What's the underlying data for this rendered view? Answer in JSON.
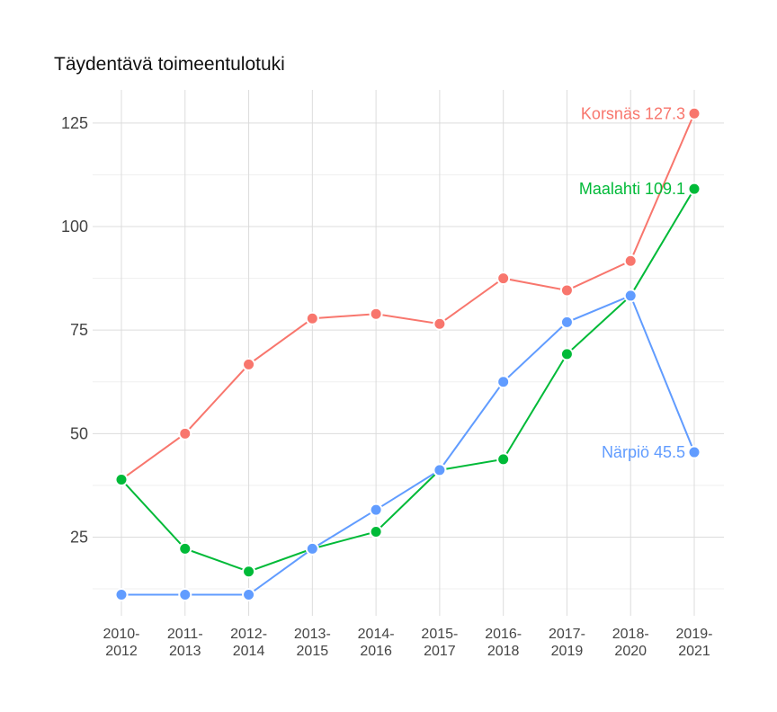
{
  "chart_data": {
    "type": "line",
    "title": "Täydentävä toimeentulotuki",
    "categories": [
      [
        "2010-",
        "2012"
      ],
      [
        "2011-",
        "2013"
      ],
      [
        "2012-",
        "2014"
      ],
      [
        "2013-",
        "2015"
      ],
      [
        "2014-",
        "2016"
      ],
      [
        "2015-",
        "2017"
      ],
      [
        "2016-",
        "2018"
      ],
      [
        "2017-",
        "2019"
      ],
      [
        "2018-",
        "2020"
      ],
      [
        "2019-",
        "2021"
      ]
    ],
    "yticks": [
      25,
      50,
      75,
      100,
      125
    ],
    "ylim": [
      6,
      133
    ],
    "grid": true,
    "series": [
      {
        "name": "Korsnäs",
        "color": "#F8766D",
        "values": [
          38.9,
          50.0,
          66.7,
          77.8,
          78.9,
          76.5,
          87.5,
          84.6,
          91.7,
          127.3
        ],
        "end_label": "Korsnäs 127.3"
      },
      {
        "name": "Maalahti",
        "color": "#00BA38",
        "values": [
          38.9,
          22.2,
          16.7,
          22.2,
          26.3,
          41.2,
          43.8,
          69.2,
          83.3,
          109.1
        ],
        "end_label": "Maalahti 109.1"
      },
      {
        "name": "Närpiö",
        "color": "#619CFF",
        "values": [
          11.1,
          11.1,
          11.1,
          22.2,
          31.6,
          41.2,
          62.5,
          76.9,
          83.3,
          45.5
        ],
        "end_label": "Närpiö 45.5"
      }
    ]
  }
}
